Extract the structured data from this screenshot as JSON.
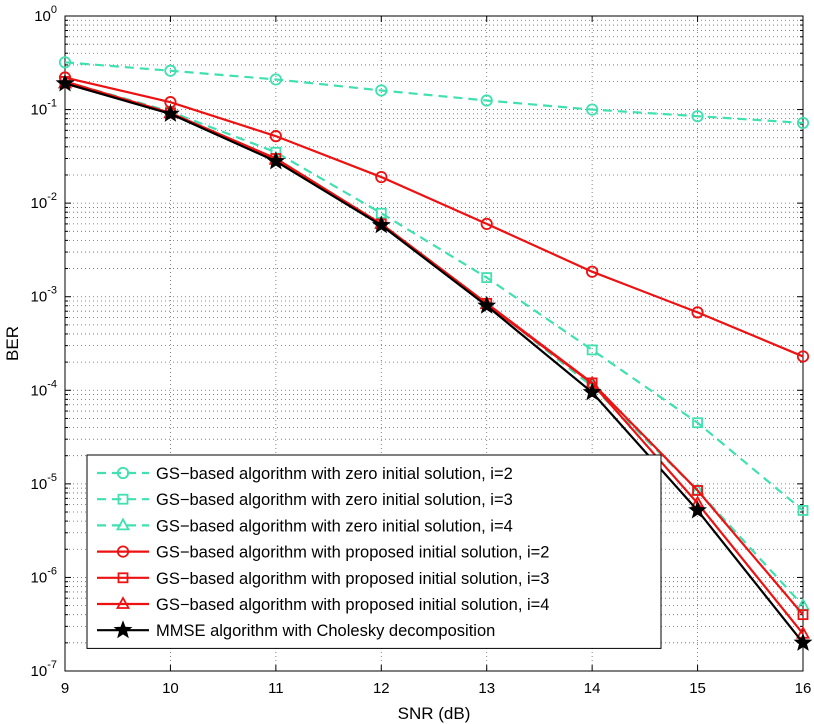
{
  "chart_data": {
    "type": "line",
    "xlabel": "SNR (dB)",
    "ylabel": "BER",
    "yscale": "log",
    "xlim": [
      9,
      16
    ],
    "ylim": [
      1e-07,
      1
    ],
    "x_ticks": [
      "9",
      "10",
      "11",
      "12",
      "13",
      "14",
      "15",
      "16"
    ],
    "y_ticks": [
      {
        "base": "10",
        "exp": "0",
        "value": 1
      },
      {
        "base": "10",
        "exp": "-1",
        "value": 0.1
      },
      {
        "base": "10",
        "exp": "-2",
        "value": 0.01
      },
      {
        "base": "10",
        "exp": "-3",
        "value": 0.001
      },
      {
        "base": "10",
        "exp": "-4",
        "value": 0.0001
      },
      {
        "base": "10",
        "exp": "-5",
        "value": 1e-05
      },
      {
        "base": "10",
        "exp": "-6",
        "value": 1e-06
      },
      {
        "base": "10",
        "exp": "-7",
        "value": 1e-07
      }
    ],
    "grid": true,
    "legend_position": "bottom-left",
    "x": [
      9,
      10,
      11,
      12,
      13,
      14,
      15,
      16
    ],
    "series": [
      {
        "name": "GS−based algorithm with zero initial solution, i=2",
        "color": "#40e0b0",
        "dash": "dashed",
        "marker": "circle",
        "values": [
          0.32,
          0.26,
          0.21,
          0.16,
          0.125,
          0.1,
          0.085,
          0.072
        ]
      },
      {
        "name": "GS−based algorithm with zero initial solution, i=3",
        "color": "#40e0b0",
        "dash": "dashed",
        "marker": "square",
        "values": [
          0.2,
          0.095,
          0.035,
          0.0078,
          0.0016,
          0.00027,
          4.5e-05,
          5.2e-06
        ]
      },
      {
        "name": "GS−based algorithm with zero initial solution, i=4",
        "color": "#40e0b0",
        "dash": "dashed",
        "marker": "triangle",
        "values": [
          0.19,
          0.092,
          0.03,
          0.006,
          0.00085,
          0.00011,
          8.5e-06,
          5e-07
        ]
      },
      {
        "name": "GS−based algorithm with proposed initial solution, i=2",
        "color": "#ee1111",
        "dash": "solid",
        "marker": "circle",
        "values": [
          0.22,
          0.12,
          0.052,
          0.019,
          0.006,
          0.00185,
          0.00068,
          0.00023
        ]
      },
      {
        "name": "GS−based algorithm with proposed initial solution, i=3",
        "color": "#ee1111",
        "dash": "solid",
        "marker": "square",
        "values": [
          0.2,
          0.092,
          0.03,
          0.006,
          0.00085,
          0.00012,
          8.5e-06,
          4e-07
        ]
      },
      {
        "name": "GS−based algorithm with proposed initial solution, i=4",
        "color": "#ee1111",
        "dash": "solid",
        "marker": "triangle",
        "values": [
          0.19,
          0.091,
          0.029,
          0.006,
          0.00083,
          0.000118,
          6.2e-06,
          2.5e-07
        ]
      },
      {
        "name": "MMSE algorithm with Cholesky decomposition",
        "color": "#000000",
        "dash": "solid",
        "marker": "star",
        "values": [
          0.19,
          0.09,
          0.028,
          0.0058,
          0.0008,
          9.5e-05,
          5.2e-06,
          2e-07
        ]
      }
    ]
  }
}
